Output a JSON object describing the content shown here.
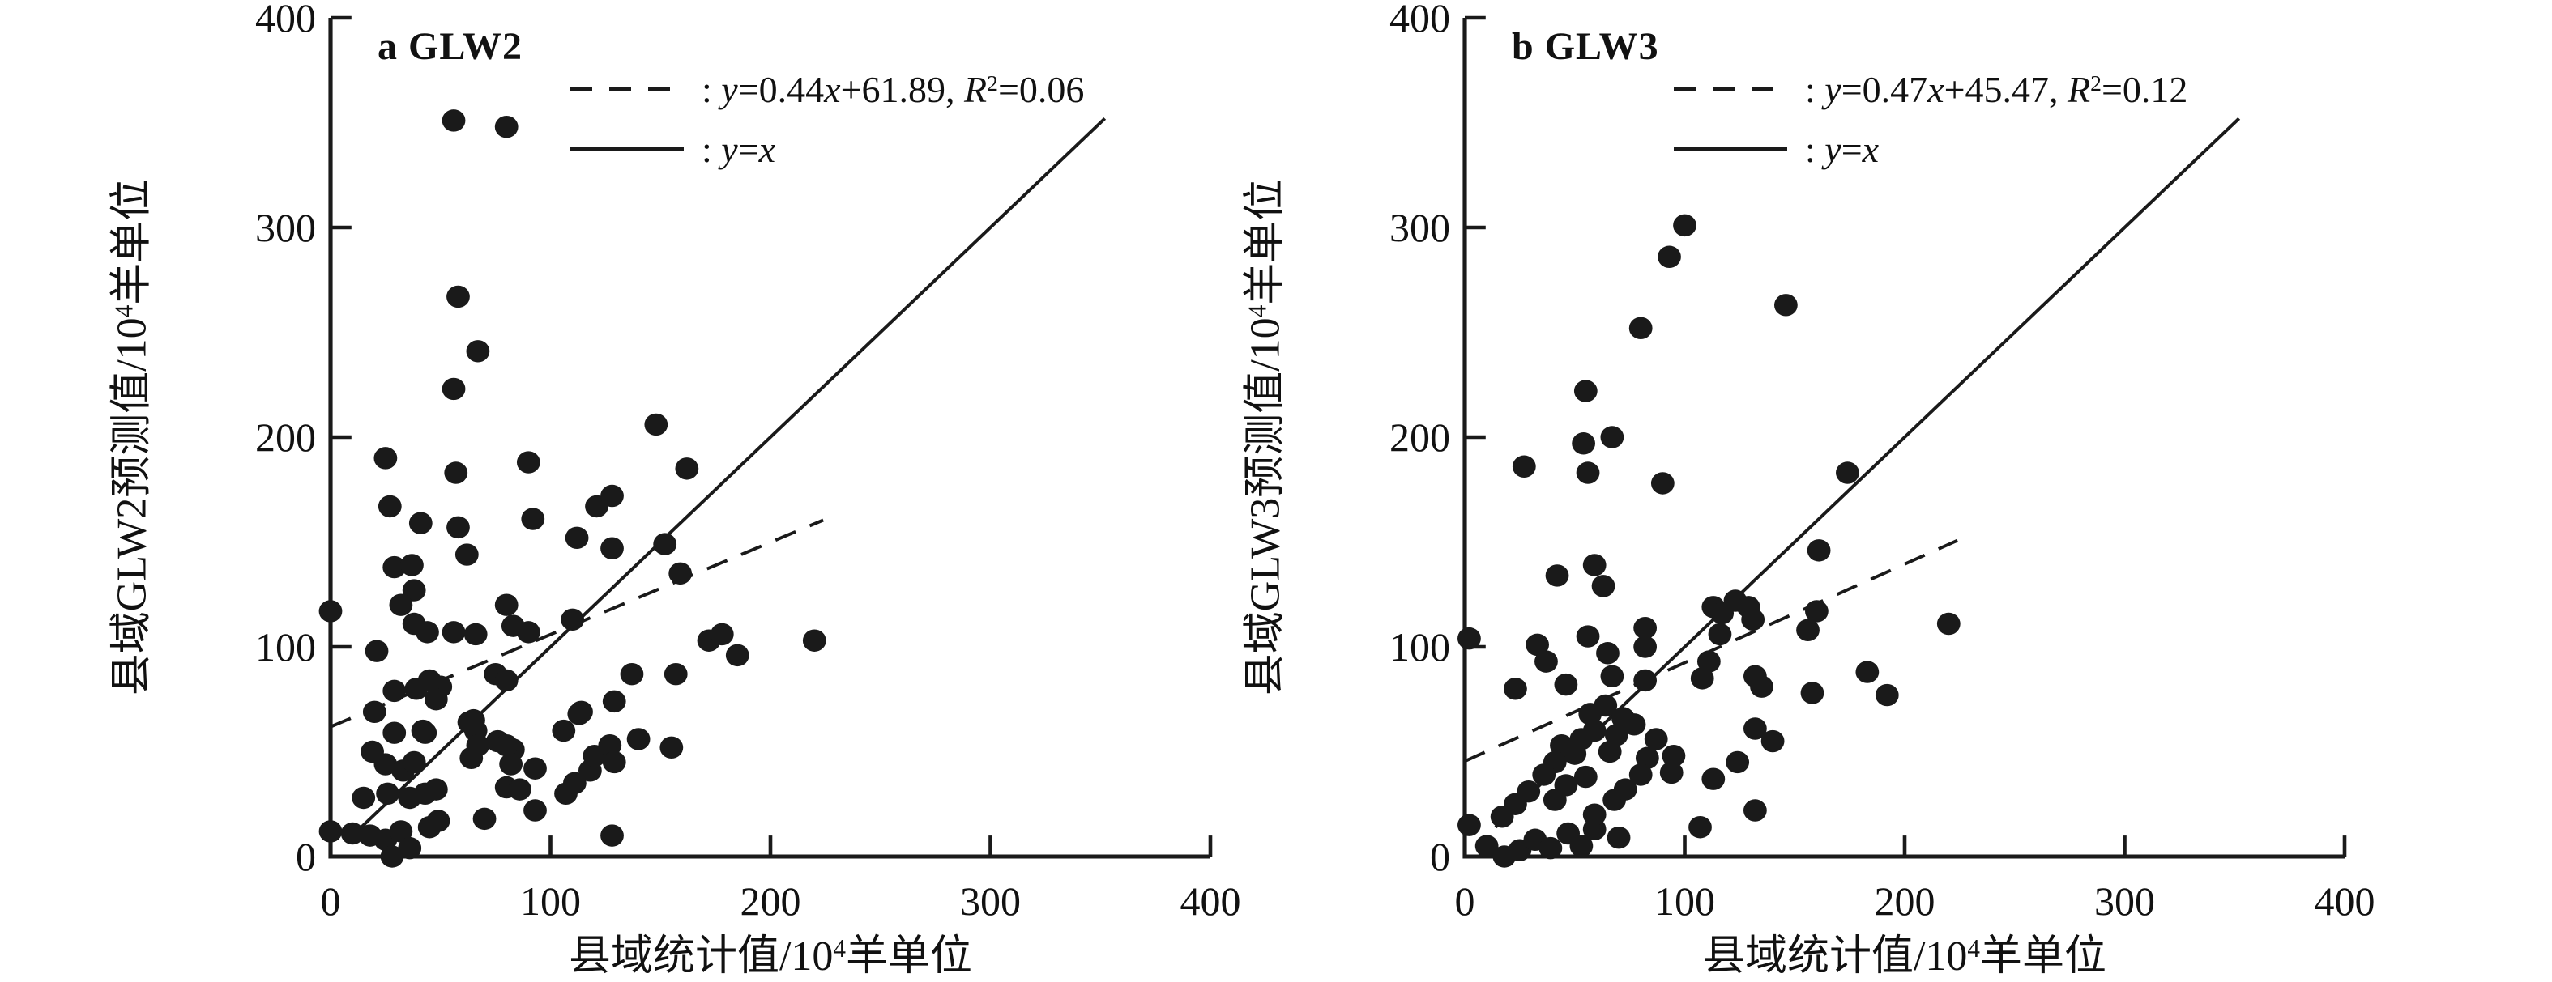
{
  "figure": {
    "background": "#ffffff",
    "ink": "#1a1a1a",
    "marker": "filled-black-circle"
  },
  "chart_data": [
    {
      "type": "scatter",
      "panel_label": "a GLW2",
      "x_label": {
        "prefix": "县域统计值/10",
        "sup": "4",
        "suffix": "羊单位",
        "text": "县域统计值/10⁴羊单位"
      },
      "y_label": {
        "prefix": "县域GLW2预测值/10",
        "sup": "4",
        "suffix": "羊单位",
        "text": "县域GLW2预测值/10⁴羊单位"
      },
      "xlim": [
        0,
        400
      ],
      "ylim": [
        0,
        400
      ],
      "xticks": [
        0,
        100,
        200,
        300,
        400
      ],
      "yticks": [
        0,
        100,
        200,
        300,
        400
      ],
      "grid": false,
      "legend_position": "upper-left-inside",
      "legend": [
        {
          "style": "dashed",
          "text": ": y=0.44x+61.89, R²=0.06",
          "parts": [
            {
              "t": ": "
            },
            {
              "t": "y",
              "s": "i"
            },
            {
              "t": "=0.44"
            },
            {
              "t": "x",
              "s": "i"
            },
            {
              "t": "+61.89, "
            },
            {
              "t": "R",
              "s": "i"
            },
            {
              "t": "2",
              "s": "sup"
            },
            {
              "t": "=0.06"
            }
          ]
        },
        {
          "style": "solid",
          "text": ": y=x",
          "parts": [
            {
              "t": ": "
            },
            {
              "t": "y",
              "s": "i"
            },
            {
              "t": "="
            },
            {
              "t": "x",
              "s": "i"
            }
          ]
        }
      ],
      "regression_line": {
        "equation": "y=0.44x+61.89",
        "slope": 0.44,
        "intercept": 61.89,
        "r_squared": 0.06,
        "x_start": 0,
        "x_end": 224,
        "style": "dashed"
      },
      "identity_line": {
        "equation": "y=x",
        "x_start": 14,
        "x_end": 352,
        "style": "solid"
      },
      "points": [
        [
          0,
          117
        ],
        [
          56,
          351
        ],
        [
          80,
          348
        ],
        [
          58,
          267
        ],
        [
          67,
          241
        ],
        [
          56,
          223
        ],
        [
          148,
          206
        ],
        [
          162,
          185
        ],
        [
          25,
          190
        ],
        [
          57,
          183
        ],
        [
          90,
          188
        ],
        [
          27,
          167
        ],
        [
          58,
          157
        ],
        [
          92,
          161
        ],
        [
          121,
          167
        ],
        [
          128,
          172
        ],
        [
          112,
          152
        ],
        [
          41,
          159
        ],
        [
          62,
          144
        ],
        [
          152,
          149
        ],
        [
          159,
          135
        ],
        [
          128,
          147
        ],
        [
          29,
          138
        ],
        [
          37,
          139
        ],
        [
          38,
          127
        ],
        [
          32,
          120
        ],
        [
          38,
          111
        ],
        [
          44,
          107
        ],
        [
          56,
          107
        ],
        [
          66,
          106
        ],
        [
          80,
          120
        ],
        [
          83,
          110
        ],
        [
          90,
          107
        ],
        [
          110,
          113
        ],
        [
          21,
          98
        ],
        [
          172,
          103
        ],
        [
          178,
          106
        ],
        [
          185,
          96
        ],
        [
          220,
          103
        ],
        [
          137,
          87
        ],
        [
          157,
          87
        ],
        [
          29,
          79
        ],
        [
          39,
          80
        ],
        [
          50,
          81
        ],
        [
          75,
          87
        ],
        [
          80,
          84
        ],
        [
          20,
          69
        ],
        [
          45,
          84
        ],
        [
          48,
          75
        ],
        [
          43,
          59
        ],
        [
          65,
          65
        ],
        [
          76,
          55
        ],
        [
          83,
          51
        ],
        [
          114,
          69
        ],
        [
          140,
          56
        ],
        [
          155,
          52
        ],
        [
          29,
          59
        ],
        [
          42,
          60
        ],
        [
          63,
          64
        ],
        [
          66,
          60
        ],
        [
          67,
          53
        ],
        [
          64,
          47
        ],
        [
          80,
          53
        ],
        [
          82,
          44
        ],
        [
          93,
          42
        ],
        [
          106,
          60
        ],
        [
          113,
          68
        ],
        [
          129,
          74
        ],
        [
          19,
          50
        ],
        [
          25,
          44
        ],
        [
          33,
          41
        ],
        [
          38,
          45
        ],
        [
          15,
          28
        ],
        [
          26,
          30
        ],
        [
          36,
          28
        ],
        [
          43,
          30
        ],
        [
          48,
          32
        ],
        [
          70,
          18
        ],
        [
          80,
          33
        ],
        [
          86,
          32
        ],
        [
          93,
          22
        ],
        [
          107,
          30
        ],
        [
          111,
          35
        ],
        [
          118,
          41
        ],
        [
          120,
          48
        ],
        [
          127,
          53
        ],
        [
          129,
          45
        ],
        [
          0,
          12
        ],
        [
          10,
          11
        ],
        [
          18,
          10
        ],
        [
          25,
          8
        ],
        [
          32,
          12
        ],
        [
          36,
          4
        ],
        [
          28,
          0
        ],
        [
          45,
          14
        ],
        [
          49,
          17
        ],
        [
          128,
          10
        ]
      ]
    },
    {
      "type": "scatter",
      "panel_label": "b GLW3",
      "x_label": {
        "prefix": "县域统计值/10",
        "sup": "4",
        "suffix": "羊单位",
        "text": "县域统计值/10⁴羊单位"
      },
      "y_label": {
        "prefix": "县域GLW3预测值/10",
        "sup": "4",
        "suffix": "羊单位",
        "text": "县域GLW3预测值/10⁴羊单位"
      },
      "xlim": [
        0,
        400
      ],
      "ylim": [
        0,
        400
      ],
      "xticks": [
        0,
        100,
        200,
        300,
        400
      ],
      "yticks": [
        0,
        100,
        200,
        300,
        400
      ],
      "grid": false,
      "legend_position": "upper-left-inside",
      "legend": [
        {
          "style": "dashed",
          "text": ": y=0.47x+45.47, R²=0.12",
          "parts": [
            {
              "t": ": "
            },
            {
              "t": "y",
              "s": "i"
            },
            {
              "t": "=0.47"
            },
            {
              "t": "x",
              "s": "i"
            },
            {
              "t": "+45.47, "
            },
            {
              "t": "R",
              "s": "i"
            },
            {
              "t": "2",
              "s": "sup"
            },
            {
              "t": "=0.12"
            }
          ]
        },
        {
          "style": "solid",
          "text": ": y=x",
          "parts": [
            {
              "t": ": "
            },
            {
              "t": "y",
              "s": "i"
            },
            {
              "t": "="
            },
            {
              "t": "x",
              "s": "i"
            }
          ]
        }
      ],
      "regression_line": {
        "equation": "y=0.47x+45.47",
        "slope": 0.47,
        "intercept": 45.47,
        "r_squared": 0.12,
        "x_start": 0,
        "x_end": 224,
        "style": "dashed"
      },
      "identity_line": {
        "equation": "y=x",
        "x_start": 14,
        "x_end": 352,
        "style": "solid"
      },
      "points": [
        [
          2,
          104
        ],
        [
          100,
          301
        ],
        [
          93,
          286
        ],
        [
          146,
          263
        ],
        [
          80,
          252
        ],
        [
          55,
          222
        ],
        [
          54,
          197
        ],
        [
          67,
          200
        ],
        [
          27,
          186
        ],
        [
          56,
          183
        ],
        [
          90,
          178
        ],
        [
          174,
          183
        ],
        [
          161,
          146
        ],
        [
          42,
          134
        ],
        [
          59,
          139
        ],
        [
          63,
          129
        ],
        [
          113,
          119
        ],
        [
          117,
          116
        ],
        [
          129,
          119
        ],
        [
          131,
          113
        ],
        [
          123,
          122
        ],
        [
          116,
          106
        ],
        [
          160,
          117
        ],
        [
          156,
          108
        ],
        [
          82,
          109
        ],
        [
          82,
          100
        ],
        [
          56,
          105
        ],
        [
          33,
          101
        ],
        [
          37,
          93
        ],
        [
          65,
          97
        ],
        [
          67,
          86
        ],
        [
          111,
          93
        ],
        [
          108,
          85
        ],
        [
          132,
          86
        ],
        [
          220,
          111
        ],
        [
          183,
          88
        ],
        [
          192,
          77
        ],
        [
          158,
          78
        ],
        [
          135,
          81
        ],
        [
          23,
          80
        ],
        [
          46,
          82
        ],
        [
          82,
          84
        ],
        [
          132,
          61
        ],
        [
          140,
          55
        ],
        [
          124,
          45
        ],
        [
          132,
          22
        ],
        [
          113,
          37
        ],
        [
          95,
          48
        ],
        [
          94,
          40
        ],
        [
          83,
          47
        ],
        [
          80,
          39
        ],
        [
          87,
          56
        ],
        [
          77,
          63
        ],
        [
          69,
          58
        ],
        [
          66,
          50
        ],
        [
          72,
          66
        ],
        [
          64,
          72
        ],
        [
          57,
          68
        ],
        [
          59,
          60
        ],
        [
          53,
          56
        ],
        [
          50,
          49
        ],
        [
          44,
          53
        ],
        [
          41,
          45
        ],
        [
          36,
          39
        ],
        [
          46,
          34
        ],
        [
          55,
          38
        ],
        [
          41,
          27
        ],
        [
          29,
          31
        ],
        [
          23,
          25
        ],
        [
          17,
          19
        ],
        [
          2,
          15
        ],
        [
          10,
          5
        ],
        [
          18,
          0
        ],
        [
          25,
          3
        ],
        [
          32,
          8
        ],
        [
          39,
          4
        ],
        [
          53,
          5
        ],
        [
          47,
          11
        ],
        [
          59,
          13
        ],
        [
          70,
          9
        ],
        [
          59,
          20
        ],
        [
          68,
          27
        ],
        [
          73,
          32
        ],
        [
          107,
          14
        ]
      ]
    }
  ]
}
